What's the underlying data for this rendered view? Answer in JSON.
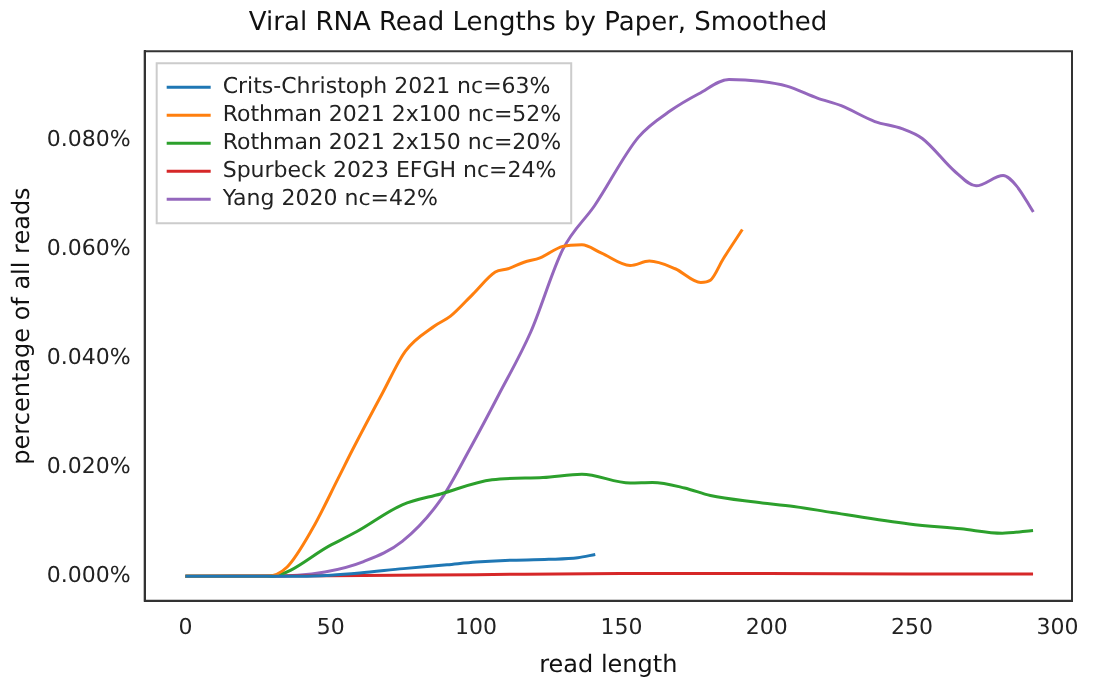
{
  "chart_data": {
    "type": "line",
    "title": "Viral RNA Read Lengths by Paper, Smoothed",
    "xlabel": "read length",
    "ylabel": "percentage of all reads",
    "xlim": [
      -14,
      305
    ],
    "xticks": [
      0,
      50,
      100,
      150,
      200,
      250,
      300
    ],
    "ylim": [
      -0.0045,
      0.0963
    ],
    "yticks": [
      {
        "value": 0,
        "label": "0.000%"
      },
      {
        "value": 0.02,
        "label": "0.020%"
      },
      {
        "value": 0.04,
        "label": "0.040%"
      },
      {
        "value": 0.06,
        "label": "0.060%"
      },
      {
        "value": 0.08,
        "label": "0.080%"
      }
    ],
    "grid": false,
    "legend": "top left",
    "marker": "none",
    "line_style": "solid",
    "series": [
      {
        "name": "Crits-Christoph 2021 nc=63%",
        "color": "#1f77b4",
        "x": [
          0,
          25,
          40,
          50,
          60,
          75,
          90,
          100,
          110,
          125,
          135,
          141
        ],
        "values": [
          0,
          0,
          0,
          0.0002,
          0.0006,
          0.0014,
          0.0021,
          0.0026,
          0.0029,
          0.0031,
          0.0034,
          0.004
        ]
      },
      {
        "name": "Rothman 2021 2x100 nc=52%",
        "color": "#ff7f0e",
        "x": [
          0,
          28,
          35,
          43.7,
          52.6,
          57.5,
          68,
          75.7,
          85.7,
          91.2,
          99,
          106.6,
          111,
          116.5,
          122,
          129.8,
          136.4,
          143,
          153,
          159.6,
          168.5,
          177.3,
          180.6,
          185,
          191.6
        ],
        "values": [
          0,
          0,
          0.0017,
          0.0087,
          0.018,
          0.0232,
          0.0338,
          0.0413,
          0.0459,
          0.0477,
          0.0518,
          0.0558,
          0.0564,
          0.0576,
          0.0584,
          0.0605,
          0.0608,
          0.0593,
          0.057,
          0.0578,
          0.0564,
          0.0539,
          0.0543,
          0.0582,
          0.0636
        ]
      },
      {
        "name": "Rothman 2021 2x150 nc=20%",
        "color": "#2ca02c",
        "x": [
          0,
          29,
          50.3,
          59,
          74.6,
          87.8,
          105.5,
          123,
          136.4,
          153,
          160.7,
          171.7,
          180.6,
          196,
          209.3,
          222.5,
          249,
          266.8,
          281,
          291.6
        ],
        "values": [
          0,
          0,
          0.0058,
          0.0082,
          0.0131,
          0.0151,
          0.0177,
          0.0181,
          0.0187,
          0.0171,
          0.0172,
          0.0162,
          0.0148,
          0.0136,
          0.0128,
          0.0117,
          0.0096,
          0.0087,
          0.0079,
          0.0084
        ]
      },
      {
        "name": "Spurbeck 2023 EFGH nc=24%",
        "color": "#d62728",
        "x": [
          0,
          50,
          100,
          150,
          200,
          250,
          291.6
        ],
        "values": [
          0,
          0.0001,
          0.0003,
          0.0005,
          0.0005,
          0.0004,
          0.0004
        ]
      },
      {
        "name": "Yang 2020 nc=42%",
        "color": "#9467bd",
        "x": [
          0,
          28,
          48,
          61.3,
          74.6,
          87.8,
          97.8,
          107.7,
          118.8,
          129.8,
          140.8,
          155.8,
          167.2,
          176.6,
          187,
          197.6,
          206.9,
          217.4,
          225.6,
          237.2,
          246.5,
          253.5,
          265,
          272,
          281.3,
          285.9,
          291.7
        ],
        "values": [
          0,
          0,
          0.0008,
          0.0027,
          0.0064,
          0.014,
          0.0233,
          0.0332,
          0.0448,
          0.0599,
          0.068,
          0.0805,
          0.0855,
          0.0885,
          0.0911,
          0.0908,
          0.0899,
          0.0877,
          0.0863,
          0.0834,
          0.0821,
          0.0803,
          0.0741,
          0.0716,
          0.0735,
          0.0716,
          0.0668
        ]
      }
    ]
  }
}
